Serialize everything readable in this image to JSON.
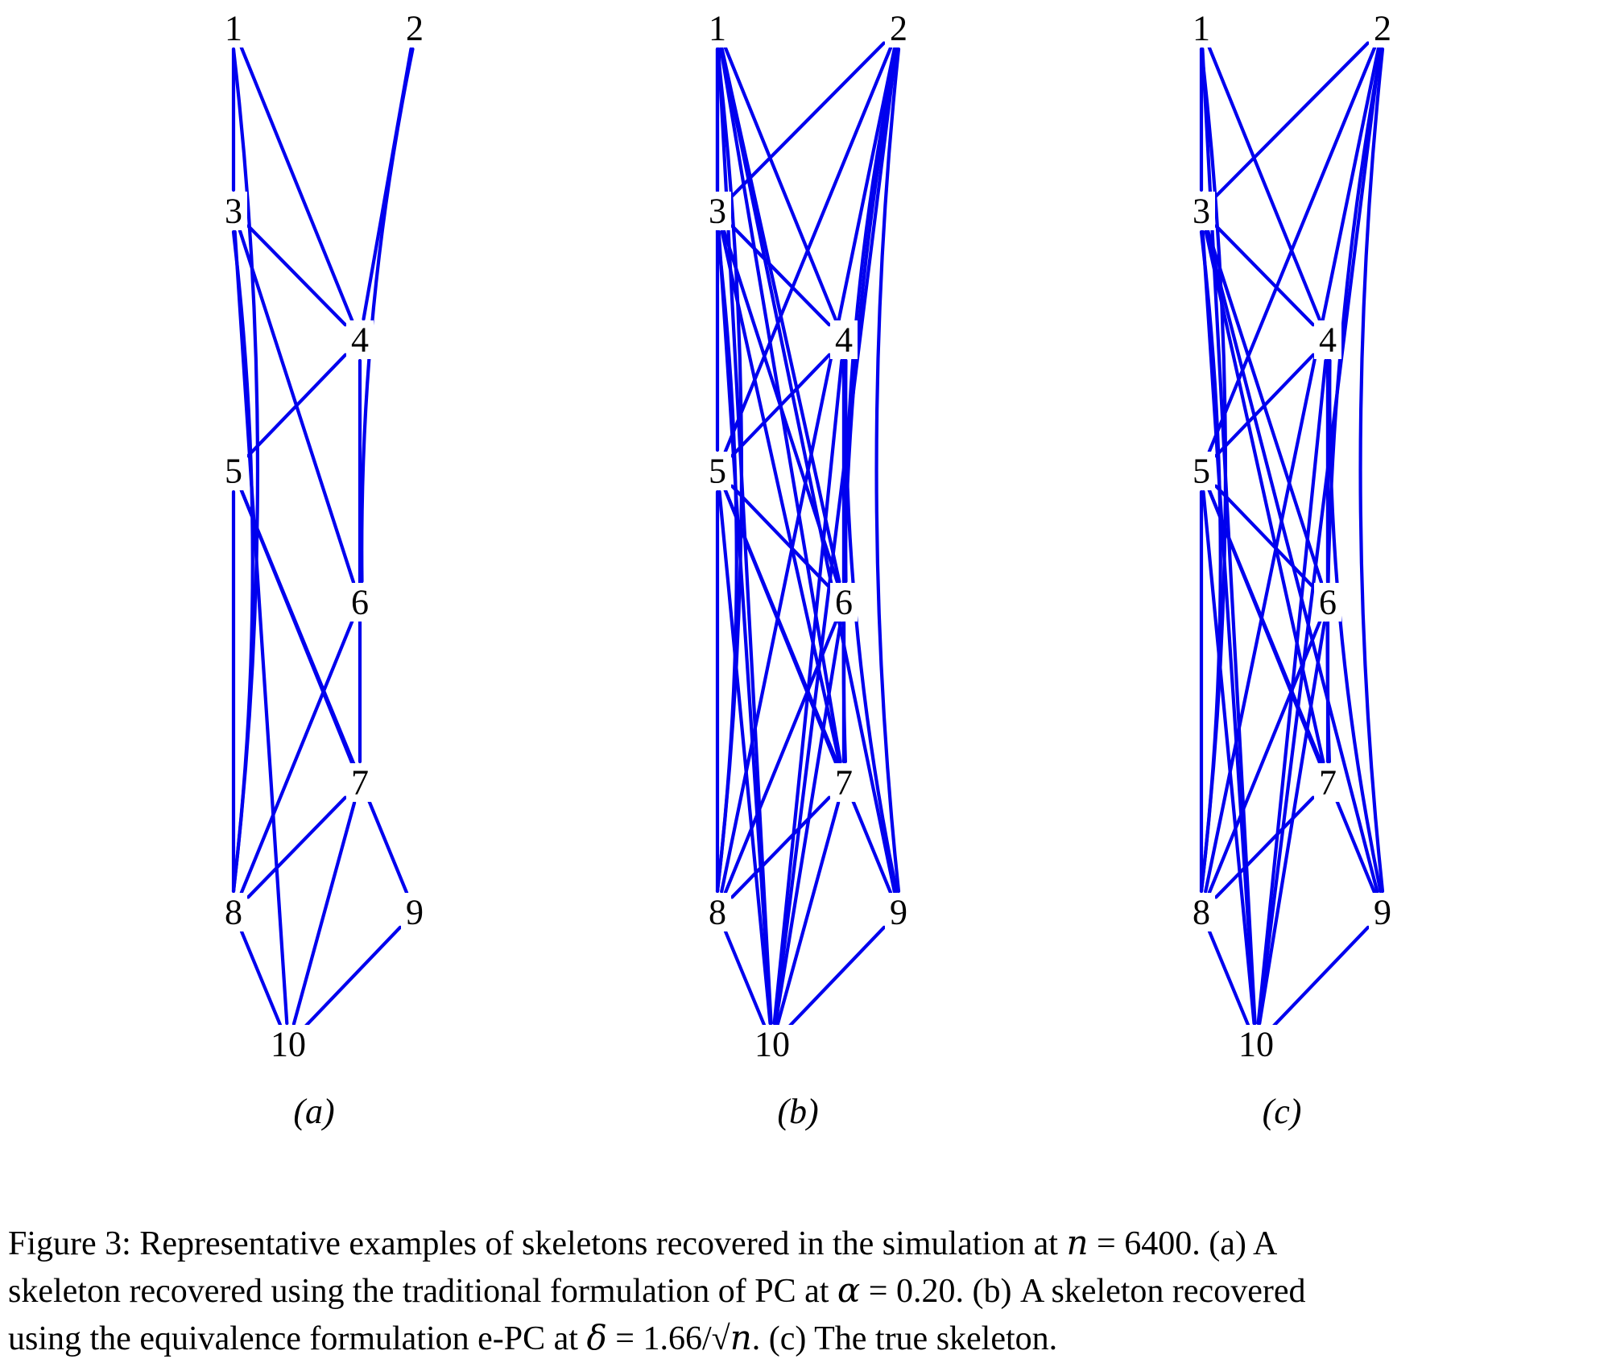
{
  "figure": {
    "edge_color": "#0000ee",
    "panels": [
      {
        "label": "(a)",
        "nodes": [
          "1",
          "2",
          "3",
          "4",
          "5",
          "6",
          "7",
          "8",
          "9",
          "10"
        ],
        "edges": [
          [
            "1",
            "3"
          ],
          [
            "1",
            "4"
          ],
          [
            "1",
            "8"
          ],
          [
            "2",
            "4"
          ],
          [
            "2",
            "6"
          ],
          [
            "3",
            "4"
          ],
          [
            "3",
            "6"
          ],
          [
            "3",
            "8"
          ],
          [
            "3",
            "10"
          ],
          [
            "4",
            "5"
          ],
          [
            "4",
            "7"
          ],
          [
            "5",
            "7"
          ],
          [
            "5",
            "8"
          ],
          [
            "5",
            "9"
          ],
          [
            "6",
            "8"
          ],
          [
            "7",
            "8"
          ],
          [
            "7",
            "10"
          ],
          [
            "8",
            "10"
          ],
          [
            "9",
            "10"
          ]
        ]
      },
      {
        "label": "(b)",
        "nodes": [
          "1",
          "2",
          "3",
          "4",
          "5",
          "6",
          "7",
          "8",
          "9",
          "10"
        ],
        "edges": [
          [
            "1",
            "3"
          ],
          [
            "1",
            "4"
          ],
          [
            "1",
            "5"
          ],
          [
            "1",
            "6"
          ],
          [
            "1",
            "7"
          ],
          [
            "1",
            "8"
          ],
          [
            "1",
            "9"
          ],
          [
            "1",
            "10"
          ],
          [
            "2",
            "3"
          ],
          [
            "2",
            "5"
          ],
          [
            "2",
            "6"
          ],
          [
            "2",
            "7"
          ],
          [
            "2",
            "8"
          ],
          [
            "2",
            "9"
          ],
          [
            "2",
            "10"
          ],
          [
            "3",
            "4"
          ],
          [
            "3",
            "6"
          ],
          [
            "3",
            "7"
          ],
          [
            "3",
            "8"
          ],
          [
            "3",
            "10"
          ],
          [
            "4",
            "5"
          ],
          [
            "4",
            "6"
          ],
          [
            "4",
            "7"
          ],
          [
            "4",
            "9"
          ],
          [
            "4",
            "10"
          ],
          [
            "5",
            "6"
          ],
          [
            "5",
            "7"
          ],
          [
            "5",
            "8"
          ],
          [
            "5",
            "9"
          ],
          [
            "5",
            "10"
          ],
          [
            "6",
            "7"
          ],
          [
            "6",
            "8"
          ],
          [
            "6",
            "10"
          ],
          [
            "7",
            "8"
          ],
          [
            "7",
            "10"
          ],
          [
            "8",
            "10"
          ],
          [
            "9",
            "10"
          ]
        ]
      },
      {
        "label": "(c)",
        "nodes": [
          "1",
          "2",
          "3",
          "4",
          "5",
          "6",
          "7",
          "8",
          "9",
          "10"
        ],
        "edges": [
          [
            "1",
            "3"
          ],
          [
            "1",
            "4"
          ],
          [
            "1",
            "8"
          ],
          [
            "1",
            "10"
          ],
          [
            "2",
            "3"
          ],
          [
            "2",
            "5"
          ],
          [
            "2",
            "7"
          ],
          [
            "2",
            "8"
          ],
          [
            "2",
            "9"
          ],
          [
            "2",
            "10"
          ],
          [
            "3",
            "4"
          ],
          [
            "3",
            "6"
          ],
          [
            "3",
            "7"
          ],
          [
            "3",
            "8"
          ],
          [
            "3",
            "9"
          ],
          [
            "3",
            "10"
          ],
          [
            "4",
            "5"
          ],
          [
            "4",
            "6"
          ],
          [
            "4",
            "7"
          ],
          [
            "4",
            "9"
          ],
          [
            "4",
            "10"
          ],
          [
            "5",
            "6"
          ],
          [
            "5",
            "7"
          ],
          [
            "5",
            "8"
          ],
          [
            "5",
            "9"
          ],
          [
            "5",
            "10"
          ],
          [
            "6",
            "8"
          ],
          [
            "6",
            "10"
          ],
          [
            "7",
            "8"
          ],
          [
            "8",
            "10"
          ],
          [
            "9",
            "10"
          ]
        ]
      }
    ]
  },
  "caption": {
    "lines": [
      [
        {
          "t": "Figure 3: Representative examples of skeletons recovered in the simulation at "
        },
        {
          "m": "n"
        },
        {
          "t": " = 6400. (a) A"
        }
      ],
      [
        {
          "t": "skeleton recovered using the traditional formulation of PC at "
        },
        {
          "m": "α"
        },
        {
          "t": " = 0.20. (b) A skeleton recovered"
        }
      ],
      [
        {
          "t": "using the equivalence formulation e-PC at "
        },
        {
          "m": "δ"
        },
        {
          "t": " = 1.66/√"
        },
        {
          "m": "n"
        },
        {
          "t": ". (c) The true skeleton."
        }
      ]
    ]
  }
}
